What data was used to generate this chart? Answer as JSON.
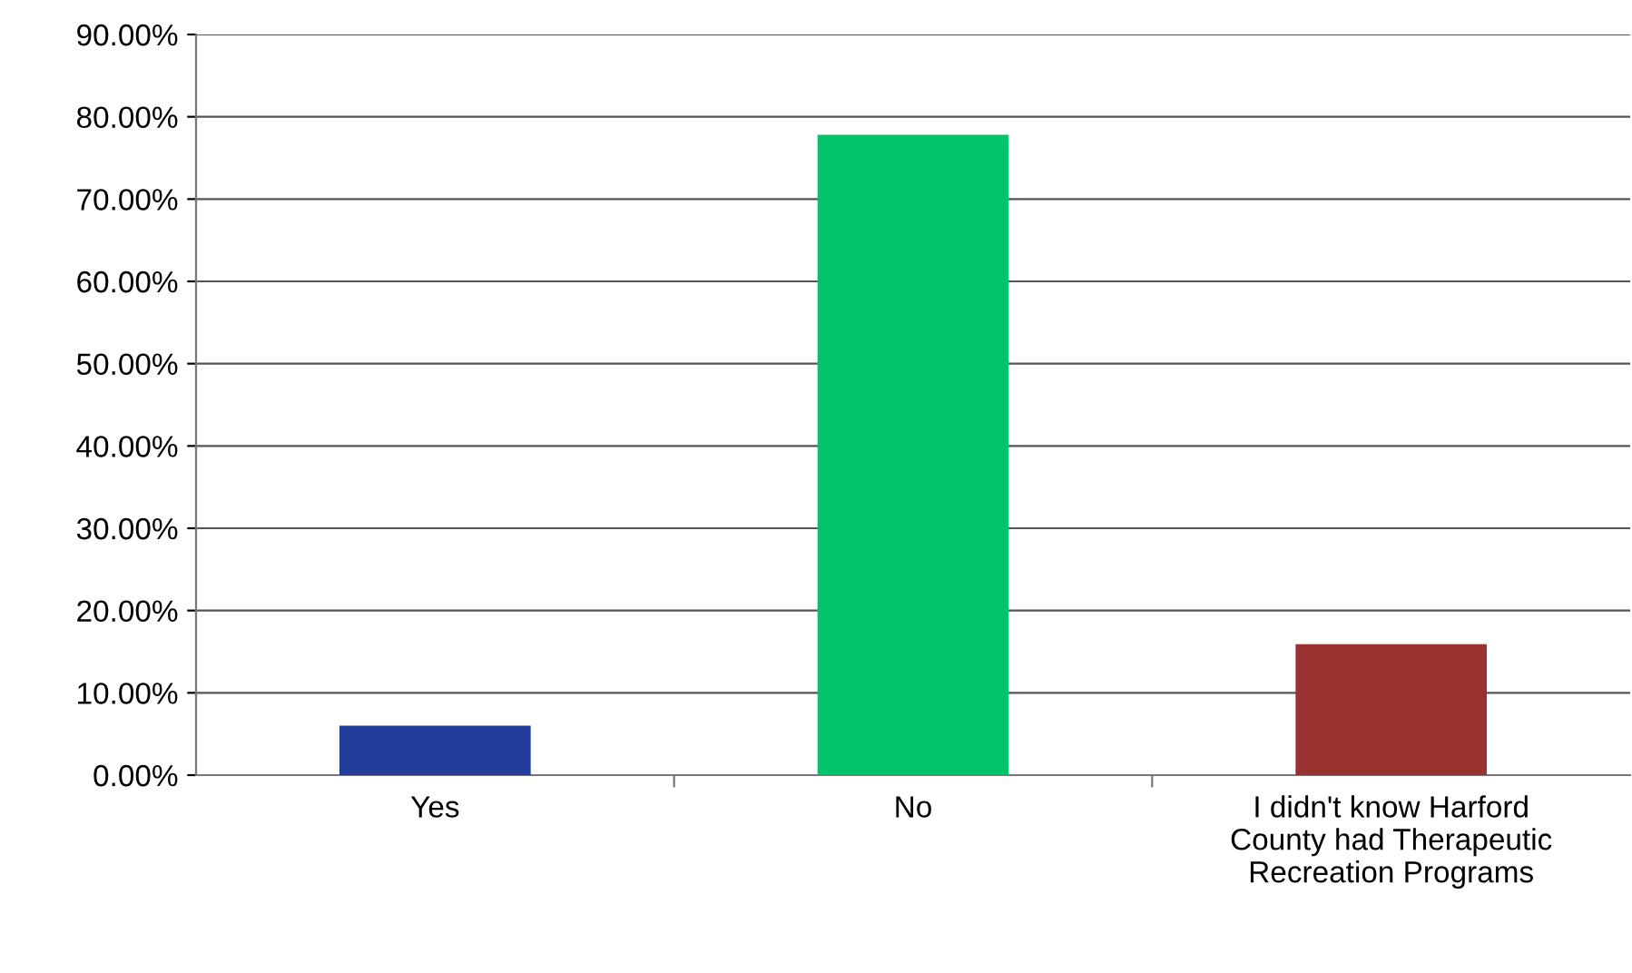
{
  "chart_data": {
    "type": "bar",
    "categories": [
      "Yes",
      "No",
      "I didn't know Harford\nCounty had Therapeutic\nRecreation Programs"
    ],
    "values": [
      6.0,
      77.8,
      15.9
    ],
    "colors": [
      "#1f3d99",
      "#00c46a",
      "#9b3232"
    ],
    "ylim": [
      0,
      90
    ],
    "yticks": [
      {
        "value": 0,
        "label": "0.00%"
      },
      {
        "value": 10,
        "label": "10.00%"
      },
      {
        "value": 20,
        "label": "20.00%"
      },
      {
        "value": 30,
        "label": "30.00%"
      },
      {
        "value": 40,
        "label": "40.00%"
      },
      {
        "value": 50,
        "label": "50.00%"
      },
      {
        "value": 60,
        "label": "60.00%"
      },
      {
        "value": 70,
        "label": "70.00%"
      },
      {
        "value": 80,
        "label": "80.00%"
      },
      {
        "value": 90,
        "label": "90.00%"
      }
    ],
    "grid": "y",
    "legend": false
  }
}
